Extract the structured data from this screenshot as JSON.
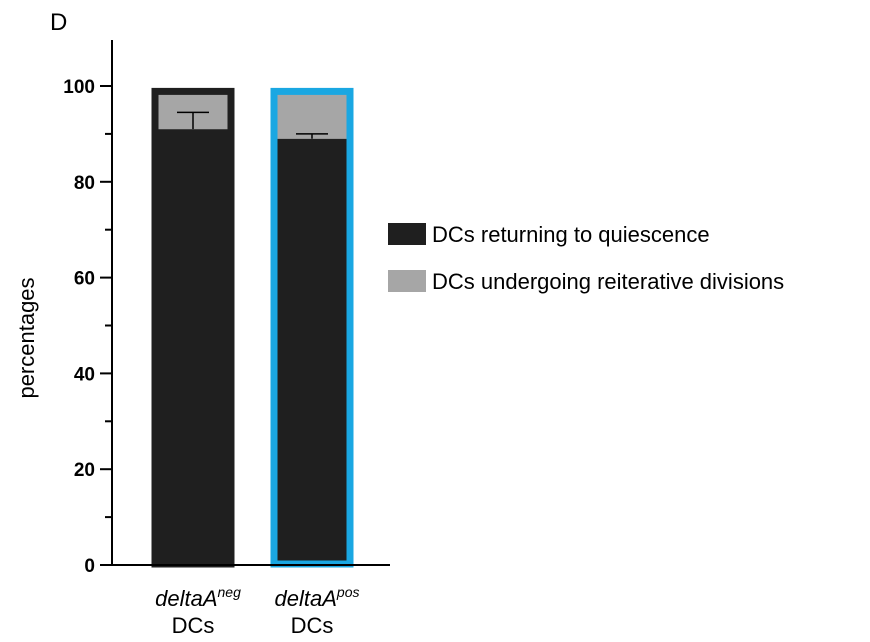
{
  "panel_label": "D",
  "chart_data": {
    "type": "bar",
    "stacked": true,
    "categories": [
      {
        "name": "deltaA",
        "superscript": "neg",
        "line2": "DCs"
      },
      {
        "name": "deltaA",
        "superscript": "pos",
        "line2": "DCs"
      }
    ],
    "series": [
      {
        "name": "DCs returning to quiescence",
        "color": "#1f1f1f",
        "values": [
          91,
          89
        ]
      },
      {
        "name": "DCs undergoing reiterative divisions",
        "color": "#a6a6a6",
        "values": [
          8.5,
          10.5
        ]
      }
    ],
    "error_bars": [
      {
        "category_index": 0,
        "top": 94.5
      },
      {
        "category_index": 1,
        "top": 90
      }
    ],
    "bar_outline_colors": [
      "#1f1f1f",
      "#1aa7e2"
    ],
    "ylabel": "percentages",
    "xlabel": "",
    "ylim": [
      0,
      110
    ],
    "yticks": [
      0,
      20,
      40,
      60,
      80,
      100
    ],
    "minor_yticks": [
      10,
      30,
      50,
      70,
      90
    ],
    "grid": false,
    "legend_position": "right"
  }
}
